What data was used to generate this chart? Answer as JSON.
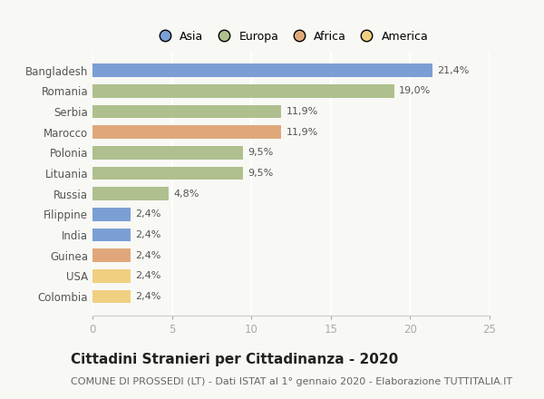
{
  "countries": [
    "Bangladesh",
    "Romania",
    "Serbia",
    "Marocco",
    "Polonia",
    "Lituania",
    "Russia",
    "Filippine",
    "India",
    "Guinea",
    "USA",
    "Colombia"
  ],
  "values": [
    21.4,
    19.0,
    11.9,
    11.9,
    9.5,
    9.5,
    4.8,
    2.4,
    2.4,
    2.4,
    2.4,
    2.4
  ],
  "labels": [
    "21,4%",
    "19,0%",
    "11,9%",
    "11,9%",
    "9,5%",
    "9,5%",
    "4,8%",
    "2,4%",
    "2,4%",
    "2,4%",
    "2,4%",
    "2,4%"
  ],
  "colors": [
    "#7b9fd4",
    "#afc08e",
    "#afc08e",
    "#e0a87a",
    "#afc08e",
    "#afc08e",
    "#afc08e",
    "#7b9fd4",
    "#7b9fd4",
    "#e0a87a",
    "#f0d080",
    "#f0d080"
  ],
  "legend_colors": {
    "Asia": "#7b9fd4",
    "Europa": "#afc08e",
    "Africa": "#e0a87a",
    "America": "#f0d080"
  },
  "xlim": [
    0,
    25
  ],
  "xticks": [
    0,
    5,
    10,
    15,
    20,
    25
  ],
  "title": "Cittadini Stranieri per Cittadinanza - 2020",
  "subtitle": "COMUNE DI PROSSEDI (LT) - Dati ISTAT al 1° gennaio 2020 - Elaborazione TUTTITALIA.IT",
  "background_color": "#f8f8f5",
  "bar_height": 0.65,
  "title_fontsize": 11,
  "subtitle_fontsize": 8,
  "label_fontsize": 8,
  "ytick_fontsize": 8.5,
  "xtick_fontsize": 8.5,
  "legend_fontsize": 9
}
